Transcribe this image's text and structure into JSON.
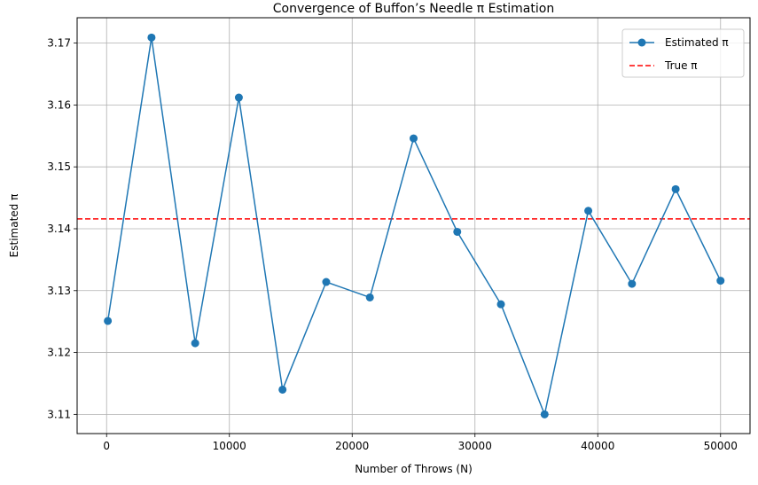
{
  "chart_data": {
    "type": "line",
    "title": "Convergence of Buffon’s Needle π Estimation",
    "xlabel": "Number of Throws (N)",
    "ylabel": "Estimated π",
    "xlim": [
      -2400,
      52400
    ],
    "ylim": [
      3.1069,
      3.1741
    ],
    "x_ticks": [
      0,
      10000,
      20000,
      30000,
      40000,
      50000
    ],
    "x_tick_labels": [
      "0",
      "10000",
      "20000",
      "30000",
      "40000",
      "50000"
    ],
    "y_ticks": [
      3.11,
      3.12,
      3.13,
      3.14,
      3.15,
      3.16,
      3.17
    ],
    "y_tick_labels": [
      "3.11",
      "3.12",
      "3.13",
      "3.14",
      "3.15",
      "3.16",
      "3.17"
    ],
    "grid": true,
    "legend_position": "top-right",
    "series": [
      {
        "name": "Estimated π",
        "color": "#1f77b4",
        "style": "solid-line-with-circle-markers",
        "x": [
          100,
          3657,
          7214,
          10771,
          14328,
          17885,
          21442,
          25000,
          28557,
          32114,
          35671,
          39228,
          42785,
          46342,
          50000
        ],
        "y": [
          3.1251,
          3.1709,
          3.1215,
          3.1612,
          3.114,
          3.1314,
          3.1289,
          3.1546,
          3.1395,
          3.1278,
          3.11,
          3.1429,
          3.1311,
          3.1464,
          3.1316
        ]
      },
      {
        "name": "True π",
        "color": "#ff0000",
        "style": "dashed-horizontal-line",
        "y_value": 3.14159
      }
    ]
  }
}
